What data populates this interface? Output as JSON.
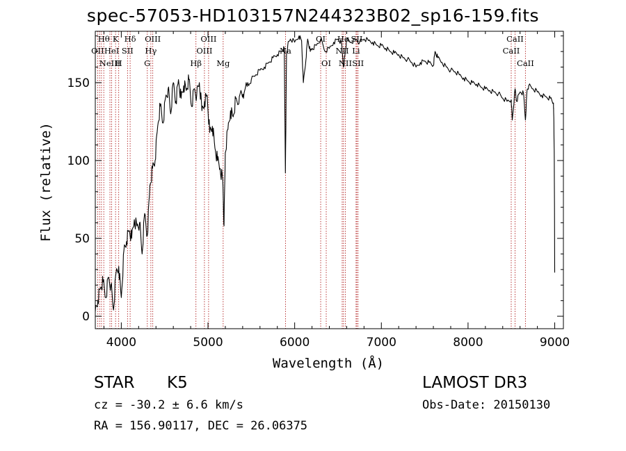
{
  "header": {
    "title": "spec-57053-HD103157N244323B02_sp16-159.fits"
  },
  "info": {
    "object_class": "STAR",
    "subclass": "K5",
    "survey": "LAMOST DR3",
    "redshift": "cz = -30.2 ± 6.6 km/s",
    "obs_date": "Obs-Date: 20150130",
    "coords": "RA = 156.90117, DEC =  26.06375"
  },
  "chart_data": {
    "type": "line",
    "title": "spec-57053-HD103157N244323B02_sp16-159.fits",
    "xlabel": "Wavelength (Å)",
    "ylabel": "Flux (relative)",
    "xlim": [
      3700,
      9100
    ],
    "ylim": [
      -8,
      183
    ],
    "x_ticks": [
      4000,
      5000,
      6000,
      7000,
      8000,
      9000
    ],
    "y_ticks": [
      0,
      50,
      100,
      150
    ],
    "series": [
      {
        "name": "flux",
        "x": [
          3700,
          3730,
          3760,
          3790,
          3820,
          3850,
          3880,
          3910,
          3940,
          3970,
          4000,
          4030,
          4060,
          4090,
          4120,
          4150,
          4180,
          4210,
          4240,
          4270,
          4300,
          4330,
          4360,
          4390,
          4420,
          4450,
          4480,
          4510,
          4540,
          4570,
          4600,
          4630,
          4660,
          4690,
          4720,
          4750,
          4780,
          4810,
          4840,
          4870,
          4900,
          4930,
          4960,
          4990,
          5020,
          5050,
          5080,
          5110,
          5140,
          5170,
          5185,
          5200,
          5230,
          5260,
          5290,
          5320,
          5350,
          5380,
          5410,
          5440,
          5470,
          5500,
          5550,
          5600,
          5650,
          5700,
          5750,
          5800,
          5850,
          5880,
          5893,
          5906,
          5920,
          5950,
          6000,
          6050,
          6080,
          6100,
          6130,
          6150,
          6180,
          6200,
          6250,
          6300,
          6350,
          6400,
          6450,
          6500,
          6540,
          6563,
          6586,
          6600,
          6650,
          6700,
          6750,
          6800,
          6850,
          6900,
          6950,
          7000,
          7050,
          7100,
          7150,
          7200,
          7250,
          7300,
          7350,
          7400,
          7450,
          7500,
          7550,
          7600,
          7620,
          7650,
          7700,
          7750,
          7800,
          7850,
          7900,
          7950,
          8000,
          8050,
          8100,
          8150,
          8200,
          8250,
          8300,
          8350,
          8400,
          8450,
          8498,
          8510,
          8542,
          8560,
          8600,
          8640,
          8662,
          8680,
          8700,
          8750,
          8800,
          8850,
          8900,
          8950,
          8985,
          8990,
          8995,
          9000
        ],
        "y": [
          3,
          10,
          18,
          22,
          12,
          25,
          20,
          4,
          28,
          32,
          12,
          42,
          48,
          55,
          50,
          62,
          58,
          60,
          40,
          66,
          52,
          84,
          95,
          100,
          122,
          135,
          124,
          140,
          146,
          130,
          150,
          138,
          152,
          140,
          148,
          145,
          152,
          135,
          146,
          142,
          150,
          132,
          138,
          142,
          118,
          122,
          108,
          100,
          95,
          88,
          58,
          105,
          120,
          132,
          128,
          140,
          136,
          145,
          140,
          150,
          148,
          152,
          155,
          158,
          160,
          163,
          166,
          168,
          170,
          172,
          92,
          168,
          174,
          178,
          176,
          180,
          177,
          150,
          165,
          178,
          170,
          172,
          174,
          178,
          170,
          172,
          176,
          178,
          176,
          160,
          170,
          178,
          176,
          178,
          176,
          178,
          177,
          176,
          174,
          174,
          172,
          170,
          169,
          168,
          166,
          165,
          163,
          160,
          163,
          164,
          163,
          161,
          170,
          166,
          163,
          160,
          158,
          157,
          155,
          153,
          151,
          150,
          149,
          147,
          146,
          145,
          144,
          143,
          140,
          138,
          139,
          126,
          146,
          138,
          144,
          143,
          126,
          145,
          148,
          146,
          144,
          142,
          141,
          140,
          137,
          125,
          100,
          28
        ]
      }
    ],
    "emission_lines": [
      {
        "wavelength": 3727,
        "label": "OII",
        "row": 1
      },
      {
        "wavelength": 3750,
        "label": "",
        "row": 0
      },
      {
        "wavelength": 3771,
        "label": "",
        "row": 0
      },
      {
        "wavelength": 3798,
        "label": "Hθ",
        "row": 0
      },
      {
        "wavelength": 3869,
        "label": "NeIII",
        "row": 2
      },
      {
        "wavelength": 3889,
        "label": "HeI",
        "row": 1
      },
      {
        "wavelength": 3934,
        "label": "K",
        "row": 0
      },
      {
        "wavelength": 3970,
        "label": "H",
        "row": 2
      },
      {
        "wavelength": 4072,
        "label": "SII",
        "row": 1
      },
      {
        "wavelength": 4102,
        "label": "Hδ",
        "row": 0
      },
      {
        "wavelength": 4300,
        "label": "G",
        "row": 2
      },
      {
        "wavelength": 4341,
        "label": "Hγ",
        "row": 1
      },
      {
        "wavelength": 4363,
        "label": "OIII",
        "row": 0
      },
      {
        "wavelength": 4861,
        "label": "Hβ",
        "row": 2
      },
      {
        "wavelength": 4959,
        "label": "OIII",
        "row": 1
      },
      {
        "wavelength": 5007,
        "label": "OIII",
        "row": 0
      },
      {
        "wavelength": 5175,
        "label": "Mg",
        "row": 2
      },
      {
        "wavelength": 5894,
        "label": "Na",
        "row": 1
      },
      {
        "wavelength": 6300,
        "label": "OI",
        "row": 0
      },
      {
        "wavelength": 6364,
        "label": "OI",
        "row": 2
      },
      {
        "wavelength": 6548,
        "label": "NII",
        "row": 1
      },
      {
        "wavelength": 6563,
        "label": "Hα",
        "row": 0
      },
      {
        "wavelength": 6584,
        "label": "NII",
        "row": 2
      },
      {
        "wavelength": 6708,
        "label": "Li",
        "row": 1
      },
      {
        "wavelength": 6717,
        "label": "SII",
        "row": 0
      },
      {
        "wavelength": 6731,
        "label": "SII",
        "row": 2
      },
      {
        "wavelength": 8498,
        "label": "CaII",
        "row": 1
      },
      {
        "wavelength": 8542,
        "label": "CaII",
        "row": 0
      },
      {
        "wavelength": 8662,
        "label": "CaII",
        "row": 2
      }
    ]
  }
}
